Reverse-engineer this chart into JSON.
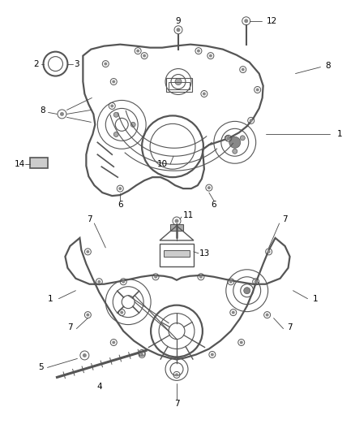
{
  "background": "#ffffff",
  "line_color": "#555555",
  "label_color": "#000000",
  "figsize": [
    4.38,
    5.33
  ],
  "dpi": 100
}
